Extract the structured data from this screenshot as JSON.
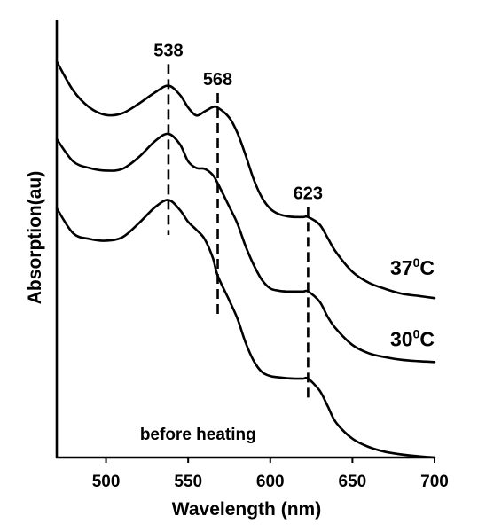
{
  "chart_data": {
    "type": "line",
    "title": "",
    "xlabel": "Wavelength (nm)",
    "ylabel": "Absorption(au)",
    "xlim": [
      470,
      700
    ],
    "ylim": [
      0,
      1
    ],
    "x_ticks": [
      "500",
      "550",
      "600",
      "650",
      "700"
    ],
    "grid": false,
    "legend": "labels at right end of curves",
    "series": [
      {
        "name": "37",
        "unit": "C",
        "x": [
          470,
          480,
          490,
          500,
          510,
          520,
          530,
          538,
          545,
          550,
          555,
          560,
          565,
          568,
          575,
          580,
          585,
          590,
          595,
          600,
          605,
          610,
          615,
          620,
          623,
          630,
          635,
          640,
          650,
          660,
          670,
          680,
          690,
          700
        ],
        "values": [
          0.904,
          0.838,
          0.799,
          0.782,
          0.786,
          0.808,
          0.834,
          0.849,
          0.828,
          0.799,
          0.781,
          0.79,
          0.8,
          0.799,
          0.776,
          0.741,
          0.69,
          0.634,
          0.593,
          0.568,
          0.556,
          0.551,
          0.549,
          0.549,
          0.549,
          0.532,
          0.501,
          0.469,
          0.424,
          0.399,
          0.385,
          0.374,
          0.369,
          0.364
        ]
      },
      {
        "name": "30",
        "unit": "C",
        "x": [
          470,
          480,
          490,
          500,
          510,
          520,
          530,
          538,
          545,
          550,
          555,
          560,
          565,
          568,
          575,
          580,
          585,
          590,
          595,
          600,
          605,
          610,
          615,
          620,
          623,
          630,
          635,
          640,
          650,
          660,
          670,
          680,
          690,
          700
        ],
        "values": [
          0.727,
          0.676,
          0.661,
          0.655,
          0.659,
          0.686,
          0.723,
          0.739,
          0.715,
          0.676,
          0.661,
          0.659,
          0.645,
          0.626,
          0.573,
          0.534,
          0.482,
          0.439,
          0.405,
          0.386,
          0.381,
          0.379,
          0.379,
          0.379,
          0.379,
          0.356,
          0.321,
          0.294,
          0.257,
          0.238,
          0.229,
          0.223,
          0.22,
          0.218
        ]
      },
      {
        "name": "before heating",
        "unit": "",
        "x": [
          470,
          480,
          490,
          500,
          510,
          520,
          530,
          538,
          545,
          550,
          555,
          560,
          565,
          568,
          575,
          580,
          585,
          590,
          595,
          600,
          605,
          610,
          615,
          620,
          623,
          630,
          635,
          640,
          650,
          660,
          670,
          680,
          690,
          700
        ],
        "values": [
          0.569,
          0.512,
          0.499,
          0.495,
          0.503,
          0.535,
          0.572,
          0.588,
          0.565,
          0.538,
          0.52,
          0.499,
          0.456,
          0.415,
          0.359,
          0.317,
          0.262,
          0.22,
          0.195,
          0.186,
          0.183,
          0.181,
          0.18,
          0.18,
          0.18,
          0.153,
          0.117,
          0.08,
          0.043,
          0.024,
          0.013,
          0.007,
          0.003,
          0.0
        ]
      }
    ],
    "annotations": [
      {
        "label": "538",
        "x": 538,
        "y_top": 0.898,
        "y_bottom": 0.508
      },
      {
        "label": "568",
        "x": 568,
        "y_top": 0.832,
        "y_bottom": 0.325
      },
      {
        "label": "623",
        "x": 623,
        "y_top": 0.572,
        "y_bottom": 0.131
      }
    ]
  }
}
